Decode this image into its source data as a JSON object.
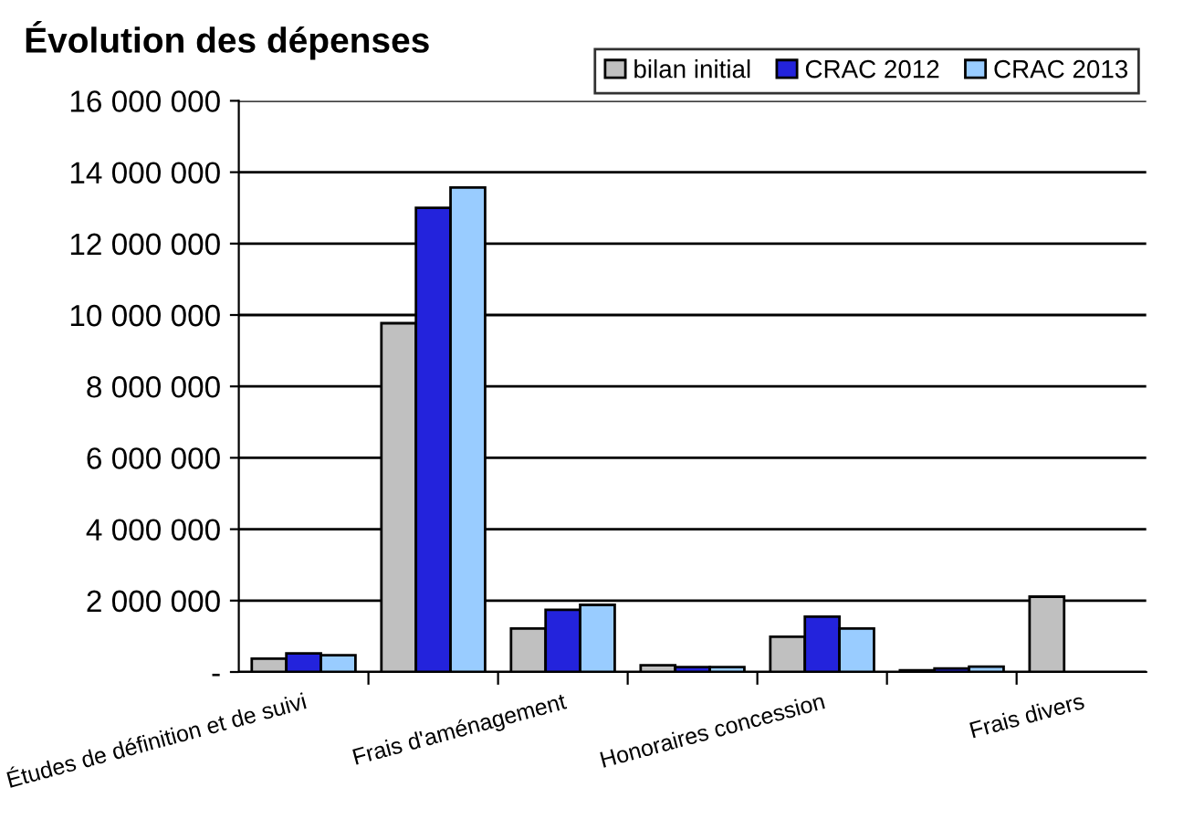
{
  "chart_data": {
    "type": "bar",
    "title": "Évolution des dépenses",
    "categories": [
      "Études de définition et de suivi",
      null,
      "Frais d'aménagement",
      null,
      "Honoraires concession",
      null,
      "Frais divers"
    ],
    "series": [
      {
        "name": "bilan initial",
        "color": "#c0c0c0",
        "values": [
          375000,
          9770000,
          1220000,
          190000,
          990000,
          50000,
          2110000
        ]
      },
      {
        "name": "CRAC 2012",
        "color": "#2323dc",
        "values": [
          520000,
          13000000,
          1740000,
          140000,
          1550000,
          100000,
          null
        ]
      },
      {
        "name": "CRAC 2013",
        "color": "#99ccff",
        "values": [
          470000,
          13570000,
          1880000,
          140000,
          1220000,
          150000,
          null
        ]
      }
    ],
    "ylim": [
      0,
      16000000
    ],
    "yticks": [
      {
        "value": 0,
        "label": "-"
      },
      {
        "value": 2000000,
        "label": "2 000 000"
      },
      {
        "value": 4000000,
        "label": "4 000 000"
      },
      {
        "value": 6000000,
        "label": "6 000 000"
      },
      {
        "value": 8000000,
        "label": "8 000 000"
      },
      {
        "value": 10000000,
        "label": "10 000 000"
      },
      {
        "value": 12000000,
        "label": "12 000 000"
      },
      {
        "value": 14000000,
        "label": "14 000 000"
      },
      {
        "value": 16000000,
        "label": "16 000 000"
      }
    ],
    "grid": "y",
    "legend": "top right"
  }
}
